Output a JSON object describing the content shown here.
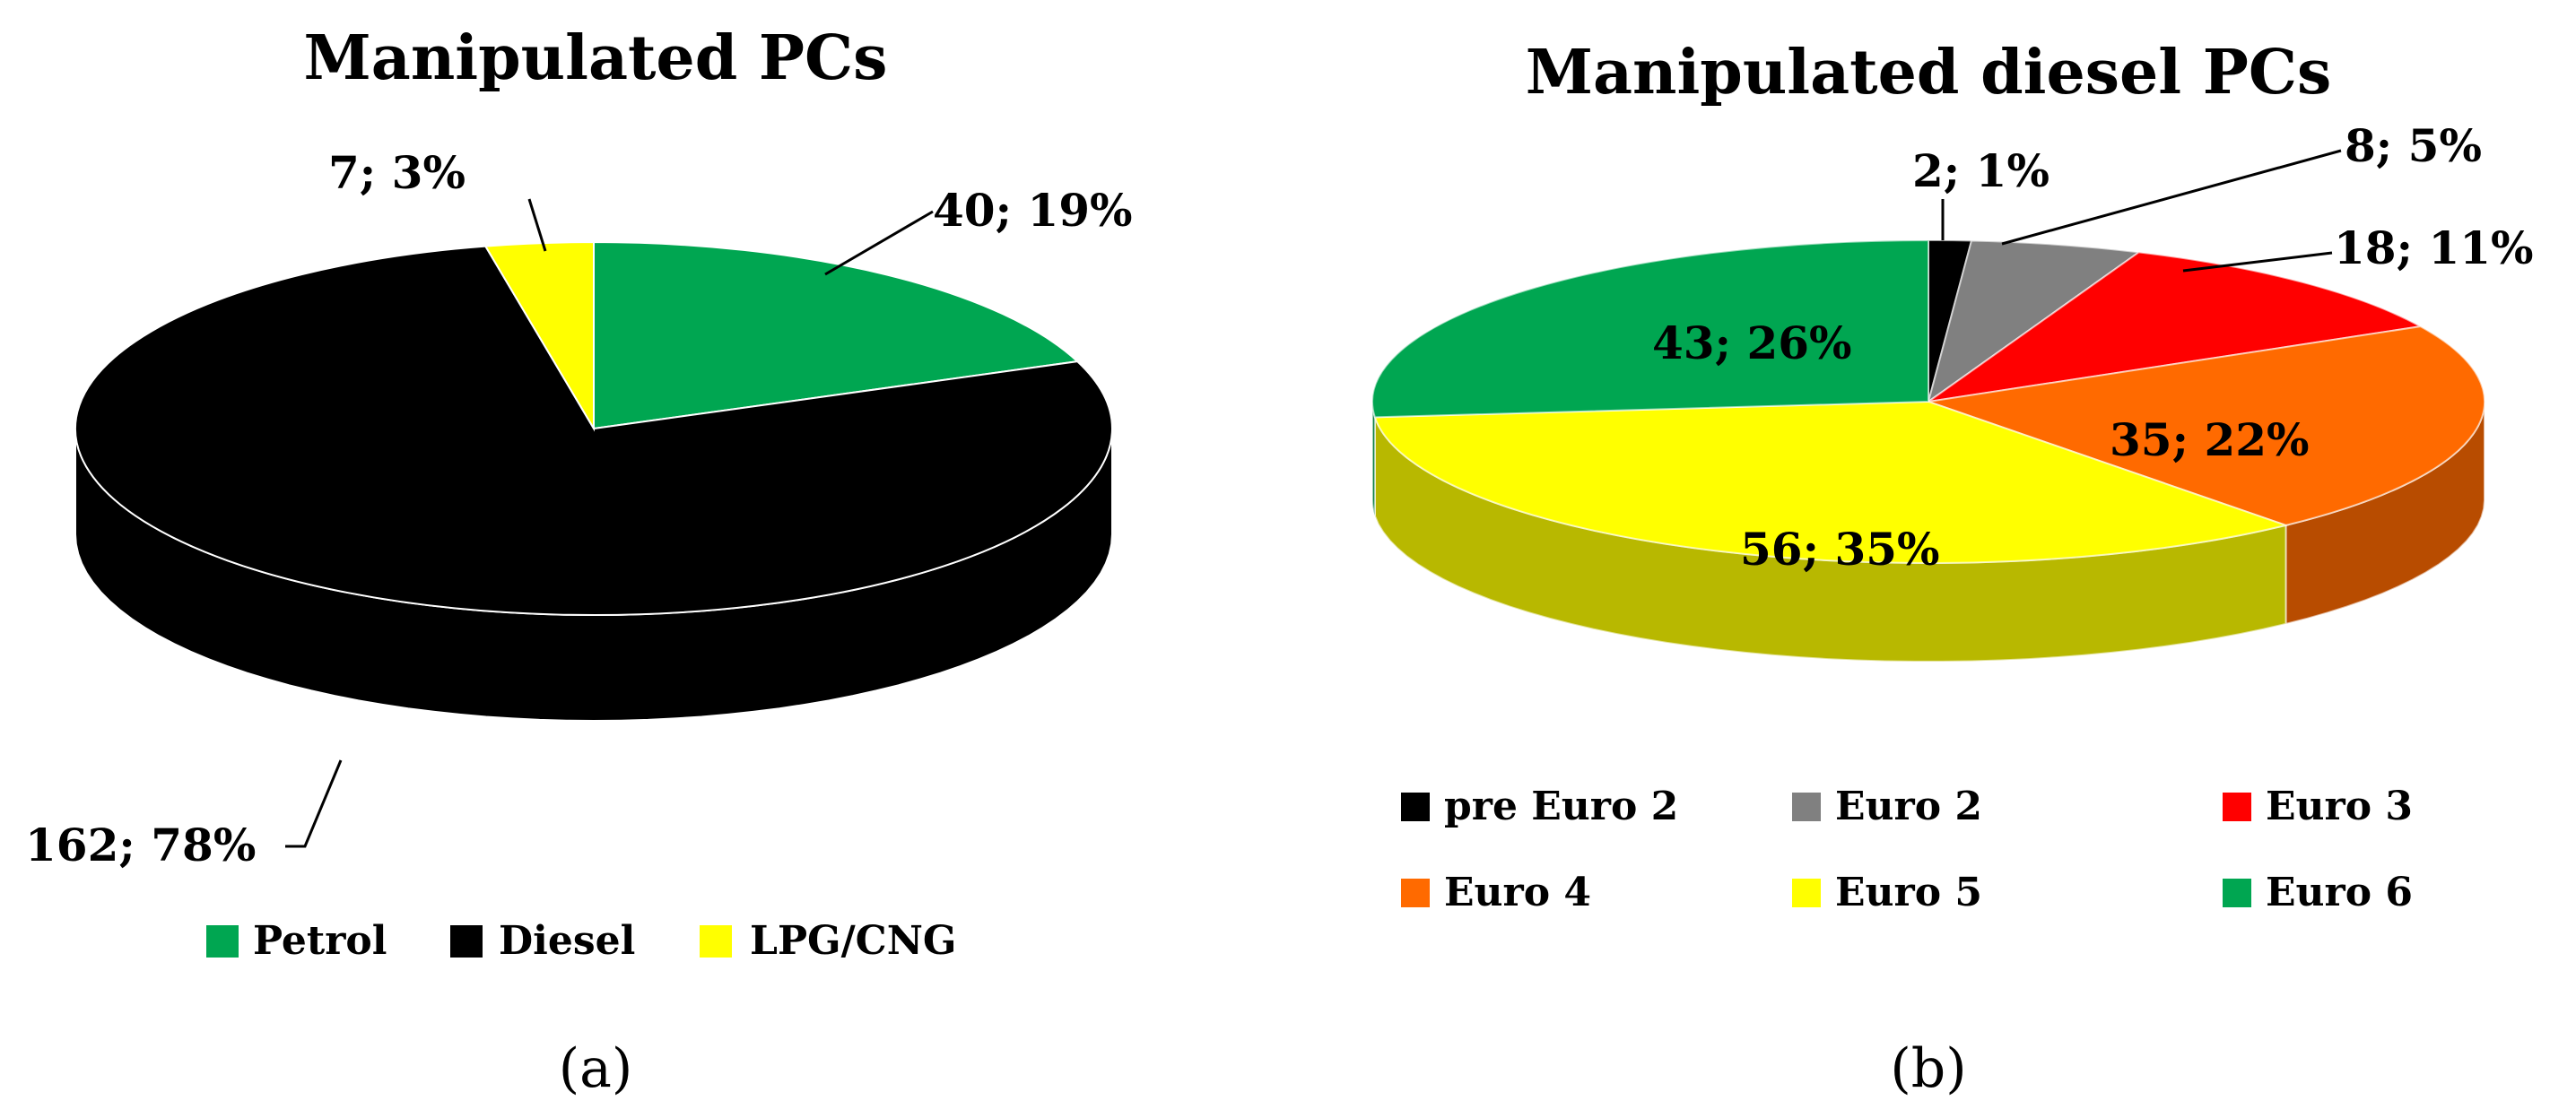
{
  "chart_data": [
    {
      "type": "pie",
      "title": "Manipulated PCs",
      "panel_label": "(a)",
      "categories": [
        "Petrol",
        "Diesel",
        "LPG/CNG"
      ],
      "values": [
        40,
        162,
        7
      ],
      "percents": [
        19,
        78,
        3
      ],
      "labels": [
        "40; 19%",
        "162; 78%",
        "7; 3%"
      ],
      "colors": [
        "#00a651",
        "#000000",
        "#ffff00"
      ],
      "legend_position": "bottom"
    },
    {
      "type": "pie",
      "title": "Manipulated diesel PCs",
      "panel_label": "(b)",
      "categories": [
        "pre Euro 2",
        "Euro 2",
        "Euro 3",
        "Euro 4",
        "Euro 5",
        "Euro 6"
      ],
      "values": [
        2,
        8,
        18,
        35,
        56,
        43
      ],
      "percents": [
        1,
        5,
        11,
        22,
        35,
        26
      ],
      "labels": [
        "2; 1%",
        "8; 5%",
        "18; 11%",
        "35; 22%",
        "56; 35%",
        "43; 26%"
      ],
      "colors": [
        "#000000",
        "#808080",
        "#ff0000",
        "#ff6a00",
        "#ffff00",
        "#00a651"
      ],
      "legend_position": "bottom"
    }
  ]
}
